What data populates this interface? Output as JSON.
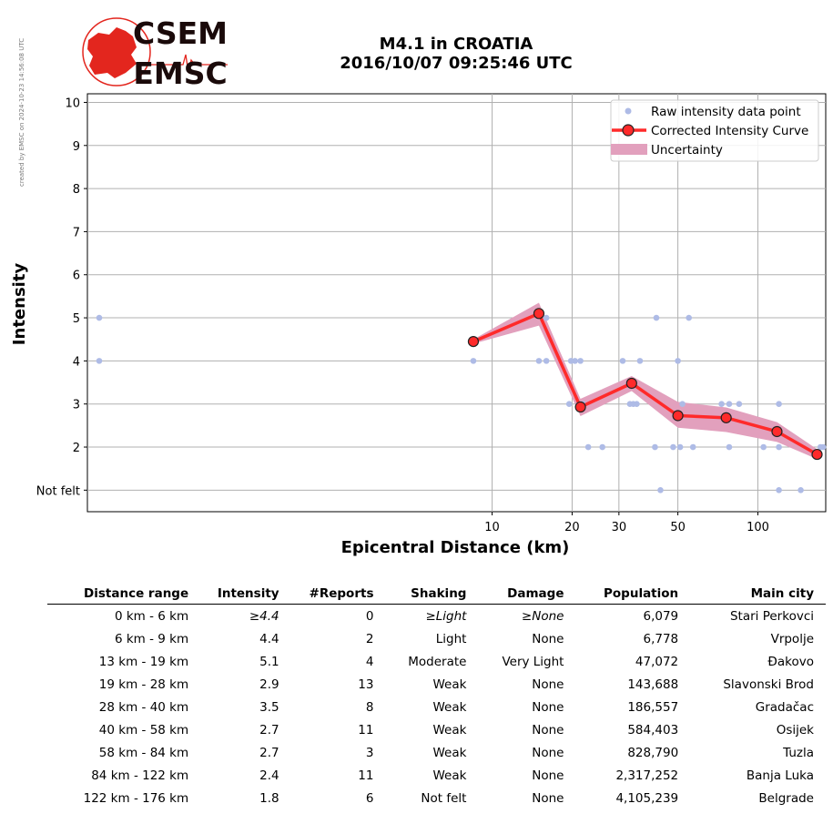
{
  "header": {
    "credit": "created by EMSC on 2024-10-23 14:56:08 UTC",
    "logo_top": "CSEM",
    "logo_bottom": "EMSC",
    "title_line1": "M4.1 in CROATIA",
    "title_line2": "2016/10/07 09:25:46 UTC"
  },
  "colors": {
    "raw_points": "#aebbe6",
    "curve": "#ff2a2a",
    "uncertainty": "#e2a0bd",
    "grid": "#b0b0b0",
    "logo_red": "#e3261e"
  },
  "chart_data": {
    "type": "scatter",
    "xscale": "log",
    "xlabel": "Epicentral Distance (km)",
    "ylabel": "Intensity",
    "xticks": [
      10,
      20,
      30,
      50,
      100
    ],
    "yticks": [
      {
        "value": 1,
        "label": "Not felt"
      },
      {
        "value": 2,
        "label": "2"
      },
      {
        "value": 3,
        "label": "3"
      },
      {
        "value": 4,
        "label": "4"
      },
      {
        "value": 5,
        "label": "5"
      },
      {
        "value": 6,
        "label": "6"
      },
      {
        "value": 7,
        "label": "7"
      },
      {
        "value": 8,
        "label": "8"
      },
      {
        "value": 9,
        "label": "9"
      },
      {
        "value": 10,
        "label": "10"
      }
    ],
    "xlim": [
      0.3,
      180
    ],
    "ylim": [
      0.5,
      10.2
    ],
    "grid": true,
    "legend_position": "top-right",
    "legend": [
      "Raw intensity data point",
      "Corrected Intensity Curve",
      "Uncertainty"
    ],
    "raw_points": [
      [
        0.3,
        5
      ],
      [
        0.3,
        4
      ],
      [
        8.5,
        4
      ],
      [
        15,
        4
      ],
      [
        16,
        4
      ],
      [
        16,
        5
      ],
      [
        19.5,
        3
      ],
      [
        19.8,
        4
      ],
      [
        20.5,
        4
      ],
      [
        21.5,
        4
      ],
      [
        22,
        3
      ],
      [
        23,
        2
      ],
      [
        26,
        2
      ],
      [
        31,
        4
      ],
      [
        33,
        3
      ],
      [
        34,
        3
      ],
      [
        35,
        3
      ],
      [
        36,
        4
      ],
      [
        41,
        2
      ],
      [
        41.5,
        5
      ],
      [
        43,
        1
      ],
      [
        48,
        2
      ],
      [
        50,
        4
      ],
      [
        51,
        2
      ],
      [
        52,
        3
      ],
      [
        55,
        5
      ],
      [
        57,
        2
      ],
      [
        73,
        3
      ],
      [
        78,
        3
      ],
      [
        78,
        2
      ],
      [
        85,
        3
      ],
      [
        105,
        2
      ],
      [
        120,
        3
      ],
      [
        120,
        2
      ],
      [
        120,
        1
      ],
      [
        145,
        1
      ],
      [
        172,
        2
      ],
      [
        176,
        2
      ]
    ],
    "series": [
      {
        "name": "Corrected Intensity Curve",
        "x": [
          8.5,
          15,
          21.5,
          33.5,
          50,
          76,
          118,
          167
        ],
        "y": [
          4.45,
          5.1,
          2.93,
          3.48,
          2.73,
          2.68,
          2.36,
          1.83
        ]
      }
    ],
    "uncertainty": {
      "x": [
        8.5,
        15,
        21.5,
        33.5,
        50,
        76,
        118,
        167
      ],
      "low": [
        4.4,
        4.82,
        2.72,
        3.3,
        2.45,
        2.35,
        2.12,
        1.72
      ],
      "high": [
        4.5,
        5.35,
        3.12,
        3.65,
        3.05,
        2.92,
        2.58,
        1.95
      ]
    }
  },
  "table": {
    "headers": [
      "Distance range",
      "Intensity",
      "#Reports",
      "Shaking",
      "Damage",
      "Population",
      "Main city"
    ],
    "rows": [
      {
        "range": "0 km -    6 km",
        "intensity": "≥4.4",
        "reports": "0",
        "shaking": "≥Light",
        "damage": "≥None",
        "population": "6,079",
        "city": "Stari Perkovci"
      },
      {
        "range": "6 km -    9 km",
        "intensity": "4.4",
        "reports": "2",
        "shaking": "Light",
        "damage": "None",
        "population": "6,778",
        "city": "Vrpolje"
      },
      {
        "range": "13 km -   19 km",
        "intensity": "5.1",
        "reports": "4",
        "shaking": "Moderate",
        "damage": "Very Light",
        "population": "47,072",
        "city": "Đakovo"
      },
      {
        "range": "19 km -   28 km",
        "intensity": "2.9",
        "reports": "13",
        "shaking": "Weak",
        "damage": "None",
        "population": "143,688",
        "city": "Slavonski Brod"
      },
      {
        "range": "28 km -   40 km",
        "intensity": "3.5",
        "reports": "8",
        "shaking": "Weak",
        "damage": "None",
        "population": "186,557",
        "city": "Gradačac"
      },
      {
        "range": "40 km -   58 km",
        "intensity": "2.7",
        "reports": "11",
        "shaking": "Weak",
        "damage": "None",
        "population": "584,403",
        "city": "Osijek"
      },
      {
        "range": "58 km -   84 km",
        "intensity": "2.7",
        "reports": "3",
        "shaking": "Weak",
        "damage": "None",
        "population": "828,790",
        "city": "Tuzla"
      },
      {
        "range": "84 km -  122 km",
        "intensity": "2.4",
        "reports": "11",
        "shaking": "Weak",
        "damage": "None",
        "population": "2,317,252",
        "city": "Banja Luka"
      },
      {
        "range": "122 km -  176 km",
        "intensity": "1.8",
        "reports": "6",
        "shaking": "Not felt",
        "damage": "None",
        "population": "4,105,239",
        "city": "Belgrade"
      }
    ]
  }
}
